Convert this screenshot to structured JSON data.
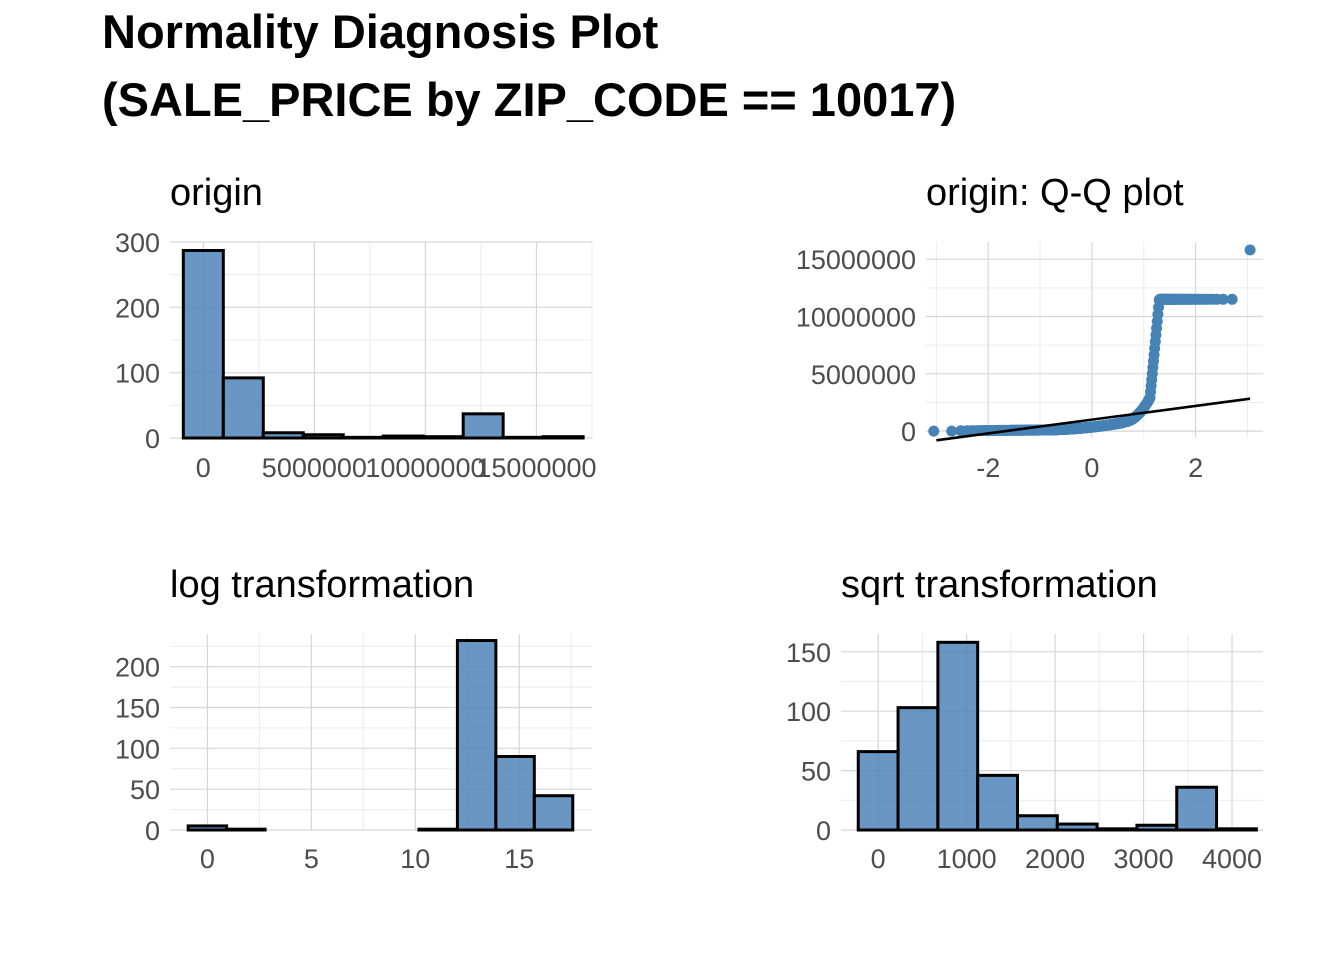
{
  "title_line1": "Normality Diagnosis Plot",
  "title_line2": "(SALE_PRICE by ZIP_CODE == 10017)",
  "colors": {
    "bar_fill": "#4f84b8",
    "point": "#4682b4",
    "line": "#000000"
  },
  "chart_data": [
    {
      "id": "origin",
      "type": "bar",
      "title": "origin",
      "xlim": [
        -1500000,
        17500000
      ],
      "ylim": [
        0,
        300
      ],
      "xticks": [
        0,
        5000000,
        10000000,
        15000000
      ],
      "xtick_labels": [
        "0",
        "5000000",
        "10000000",
        "15000000"
      ],
      "yticks": [
        0,
        100,
        200,
        300
      ],
      "ytick_labels": [
        "0",
        "100",
        "200",
        "300"
      ],
      "bin_width": 1800000,
      "bin_centers": [
        0,
        1800000,
        3600000,
        5400000,
        7200000,
        9000000,
        10800000,
        12600000,
        14400000,
        16200000
      ],
      "values": [
        287,
        92,
        8,
        5,
        1,
        3,
        2,
        37,
        1,
        2
      ],
      "grid": true
    },
    {
      "id": "qq",
      "type": "scatter",
      "title": "origin: Q-Q plot",
      "xlim": [
        -3.2,
        3.3
      ],
      "ylim": [
        -600000,
        16500000
      ],
      "xticks": [
        -2,
        0,
        2
      ],
      "xtick_labels": [
        "-2",
        "0",
        "2"
      ],
      "yticks": [
        0,
        5000000,
        10000000,
        15000000
      ],
      "ytick_labels": [
        "0",
        "5000000",
        "10000000",
        "15000000"
      ],
      "ref_line": {
        "intercept": 1000000,
        "slope": 600000
      },
      "grid": true
    },
    {
      "id": "log",
      "type": "bar",
      "title": "log transformation",
      "xlim": [
        -1.8,
        18.5
      ],
      "ylim": [
        0,
        240
      ],
      "xticks": [
        0,
        5,
        10,
        15
      ],
      "xtick_labels": [
        "0",
        "5",
        "10",
        "15"
      ],
      "yticks": [
        0,
        50,
        100,
        150,
        200
      ],
      "ytick_labels": [
        "0",
        "50",
        "100",
        "150",
        "200"
      ],
      "bin_width": 1.85,
      "bin_centers": [
        0,
        1.85,
        3.7,
        5.55,
        7.4,
        9.25,
        11.1,
        12.95,
        14.8,
        16.65
      ],
      "values": [
        5,
        1,
        0,
        0,
        0,
        0,
        1,
        232,
        90,
        42
      ],
      "grid": true
    },
    {
      "id": "sqrt",
      "type": "bar",
      "title": "sqrt transformation",
      "xlim": [
        -420,
        4350
      ],
      "ylim": [
        0,
        165
      ],
      "xticks": [
        0,
        1000,
        2000,
        3000,
        4000
      ],
      "xtick_labels": [
        "0",
        "1000",
        "2000",
        "3000",
        "4000"
      ],
      "yticks": [
        0,
        50,
        100,
        150
      ],
      "ytick_labels": [
        "0",
        "50",
        "100",
        "150"
      ],
      "bin_width": 450,
      "bin_centers": [
        0,
        450,
        900,
        1350,
        1800,
        2250,
        2700,
        3150,
        3600,
        4050
      ],
      "values": [
        66,
        103,
        158,
        46,
        12,
        5,
        1,
        4,
        36,
        1
      ],
      "grid": true
    }
  ]
}
